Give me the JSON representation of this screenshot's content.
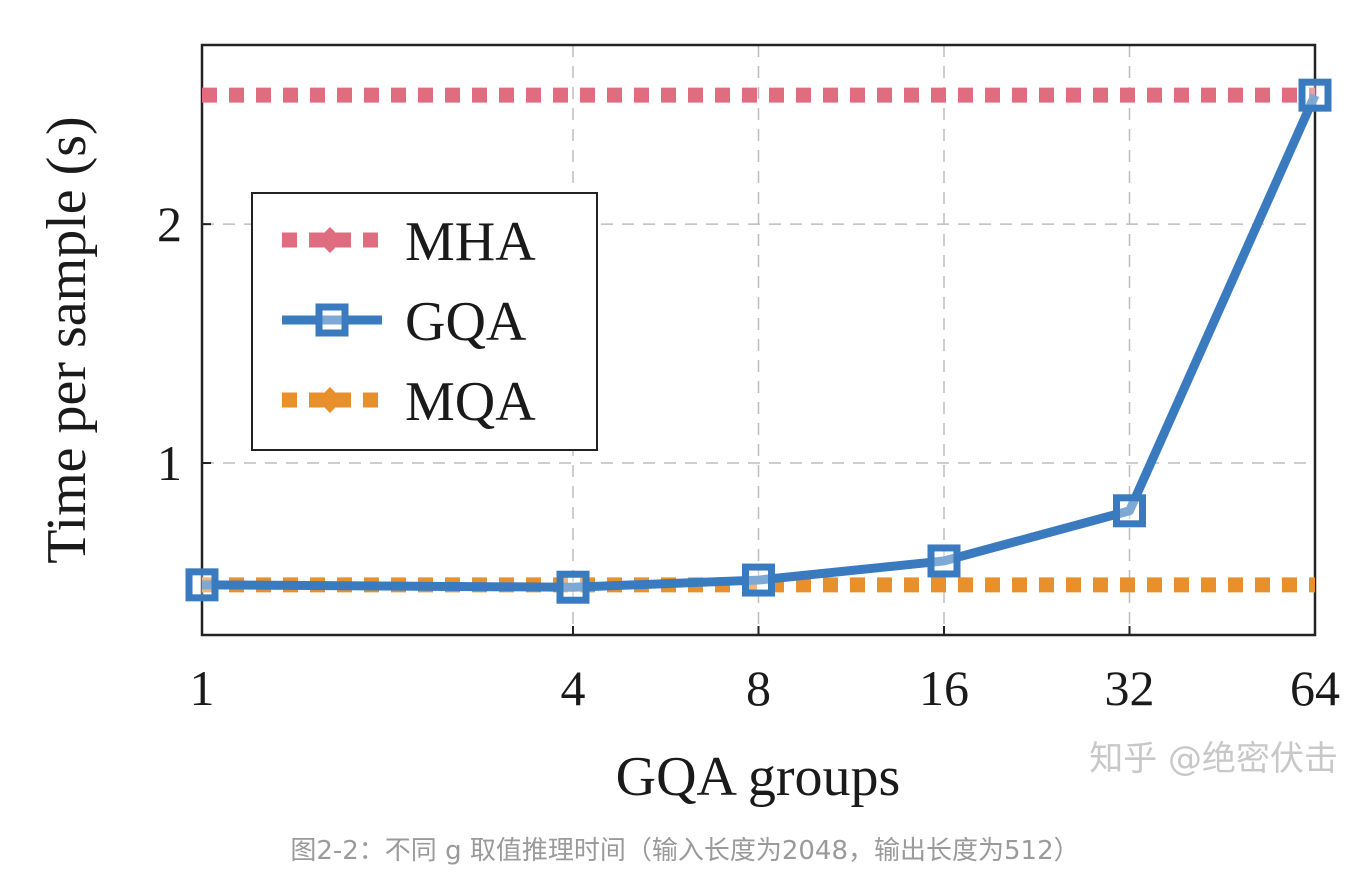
{
  "chart_data": {
    "type": "line",
    "xlabel": "GQA groups",
    "ylabel": "Time per sample (s)",
    "x_scale": "log2",
    "x": [
      1,
      4,
      8,
      16,
      32,
      64
    ],
    "x_tick_labels": [
      "1",
      "4",
      "8",
      "16",
      "32",
      "64"
    ],
    "y_ticks": [
      1,
      2
    ],
    "ylim": [
      0.28,
      2.75
    ],
    "grid": true,
    "legend_position": "left, vertically centered",
    "series": [
      {
        "name": "MHA",
        "color": "#e06c80",
        "style": "dotted",
        "marker": "diamond",
        "values": [
          2.54,
          2.54,
          2.54,
          2.54,
          2.54,
          2.54
        ]
      },
      {
        "name": "GQA",
        "color": "#3a7bbf",
        "style": "solid",
        "marker": "square",
        "values": [
          0.49,
          0.48,
          0.51,
          0.59,
          0.8,
          2.54
        ]
      },
      {
        "name": "MQA",
        "color": "#e8902c",
        "style": "dotted",
        "marker": "diamond",
        "values": [
          0.49,
          0.49,
          0.49,
          0.49,
          0.49,
          0.49
        ]
      }
    ]
  },
  "watermark": "知乎 @绝密伏击",
  "caption": "图2-2：不同 g 取值推理时间（输入长度为2048，输出长度为512）"
}
